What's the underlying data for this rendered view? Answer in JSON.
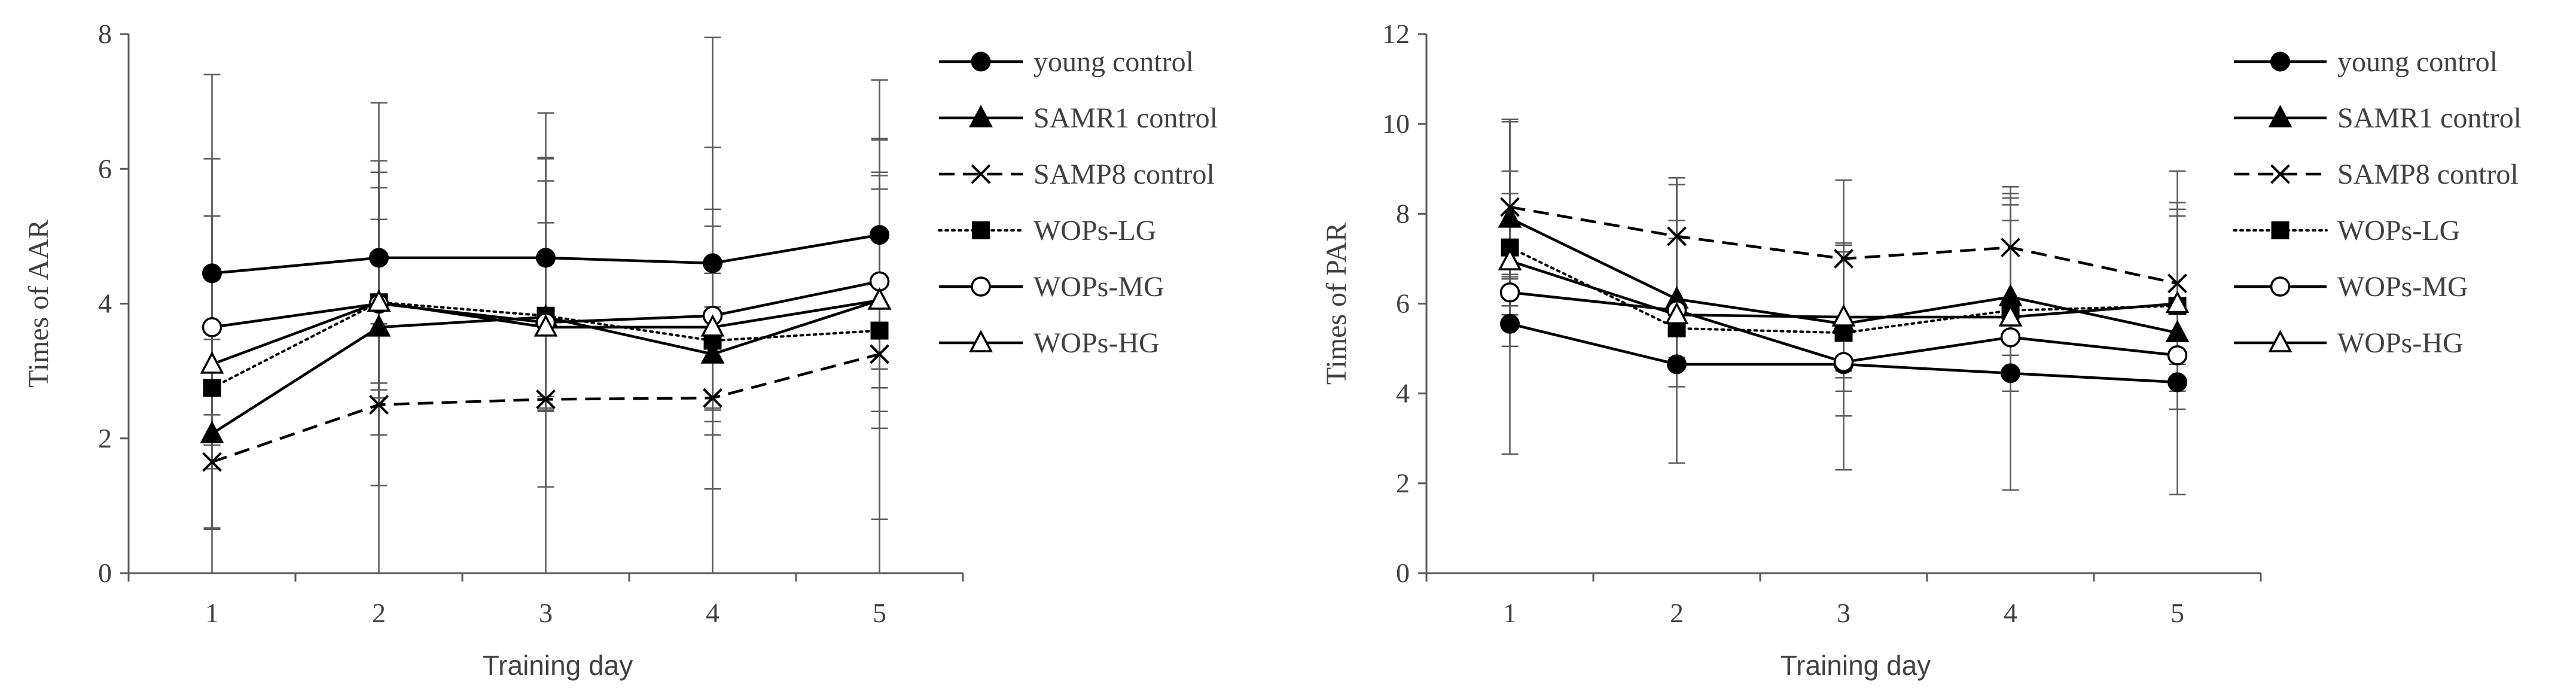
{
  "chart_data": [
    {
      "type": "line",
      "title": "",
      "xlabel": "Training day",
      "ylabel": "Times of  AAR",
      "categories": [
        "1",
        "2",
        "3",
        "4",
        "5"
      ],
      "ylim": [
        0,
        8
      ],
      "yticks": [
        "0",
        "2",
        "4",
        "6",
        "8"
      ],
      "legend_position": "right",
      "series": [
        {
          "name": "young control",
          "marker": "circle-filled",
          "line": "solid",
          "values": [
            4.45,
            4.68,
            4.68,
            4.6,
            5.02
          ],
          "err_low": [
            4.45,
            4.68,
            4.68,
            4.6,
            5.02
          ],
          "err_high": [
            2.95,
            2.3,
            2.15,
            3.35,
            2.3
          ]
        },
        {
          "name": "SAMR1 control",
          "marker": "triangle-filled",
          "line": "solid",
          "values": [
            2.07,
            3.65,
            3.8,
            3.25,
            4.05
          ],
          "err_low": [
            1.4,
            1.6,
            1.4,
            1.2,
            1.9
          ],
          "err_high": [
            1.4,
            1.6,
            1.4,
            1.2,
            1.9
          ]
        },
        {
          "name": "SAMP8 control",
          "marker": "x",
          "line": "dashed",
          "values": [
            1.65,
            2.5,
            2.58,
            2.6,
            3.25
          ],
          "err_low": [
            1.0,
            1.2,
            1.3,
            1.35,
            2.45
          ],
          "err_high": [
            1.0,
            1.2,
            1.3,
            1.35,
            2.45
          ]
        },
        {
          "name": "WOPs-LG",
          "marker": "square-filled",
          "line": "dotted",
          "values": [
            2.75,
            4.02,
            3.82,
            3.45,
            3.6
          ],
          "err_low": [
            1.2,
            1.2,
            1.2,
            1.2,
            1.2
          ],
          "err_high": [
            2.55,
            2.1,
            2.0,
            1.95,
            2.3
          ]
        },
        {
          "name": "WOPs-MG",
          "marker": "circle-open",
          "line": "solid",
          "values": [
            3.65,
            4.0,
            3.72,
            3.82,
            4.33
          ],
          "err_low": [
            1.3,
            1.4,
            1.3,
            1.4,
            1.3
          ],
          "err_high": [
            2.5,
            1.95,
            2.45,
            2.5,
            2.1
          ]
        },
        {
          "name": "WOPs-HG",
          "marker": "triangle-open",
          "line": "solid",
          "values": [
            3.1,
            4.02,
            3.65,
            3.65,
            4.05
          ],
          "err_low": [
            1.2,
            1.3,
            1.2,
            1.2,
            1.3
          ],
          "err_high": [
            2.2,
            1.7,
            2.5,
            1.5,
            2.4
          ]
        }
      ]
    },
    {
      "type": "line",
      "title": "",
      "xlabel": "Training day",
      "ylabel": "Times of PAR",
      "categories": [
        "1",
        "2",
        "3",
        "4",
        "5"
      ],
      "ylim": [
        0,
        12
      ],
      "yticks": [
        "0",
        "2",
        "4",
        "6",
        "8",
        "10",
        "12"
      ],
      "legend_position": "right",
      "series": [
        {
          "name": "young control",
          "marker": "circle-filled",
          "line": "solid",
          "values": [
            5.55,
            4.65,
            4.65,
            4.45,
            4.25
          ],
          "err_low": [
            2.9,
            2.2,
            2.35,
            2.6,
            2.5
          ],
          "err_high": [
            1.0,
            0.8,
            0.9,
            0.9,
            1.0
          ]
        },
        {
          "name": "SAMR1 control",
          "marker": "triangle-filled",
          "line": "solid",
          "values": [
            7.9,
            6.1,
            5.55,
            6.15,
            5.35
          ],
          "err_low": [
            1.3,
            1.3,
            1.2,
            1.3,
            1.3
          ],
          "err_high": [
            2.2,
            2.7,
            1.6,
            2.3,
            2.9
          ]
        },
        {
          "name": "SAMP8 control",
          "marker": "x",
          "line": "dashed",
          "values": [
            8.15,
            7.5,
            7.0,
            7.25,
            6.45
          ],
          "err_low": [
            1.5,
            1.5,
            1.5,
            1.5,
            1.5
          ],
          "err_high": [
            1.95,
            1.3,
            1.75,
            1.35,
            2.5
          ]
        },
        {
          "name": "WOPs-LG",
          "marker": "square-filled",
          "line": "dotted",
          "values": [
            7.25,
            5.45,
            5.35,
            5.85,
            5.95
          ],
          "err_low": [
            1.3,
            1.3,
            1.3,
            1.3,
            1.3
          ],
          "err_high": [
            2.8,
            2.0,
            2.0,
            2.0,
            2.0
          ]
        },
        {
          "name": "WOPs-MG",
          "marker": "circle-open",
          "line": "solid",
          "values": [
            6.25,
            5.85,
            4.7,
            5.25,
            4.85
          ],
          "err_low": [
            1.2,
            1.2,
            1.2,
            1.2,
            1.2
          ],
          "err_high": [
            2.2,
            2.8,
            2.6,
            3.1,
            3.4
          ]
        },
        {
          "name": "WOPs-HG",
          "marker": "triangle-open",
          "line": "solid",
          "values": [
            6.95,
            5.75,
            5.7,
            5.7,
            6.0
          ],
          "err_low": [
            1.2,
            1.2,
            1.2,
            1.2,
            1.2
          ],
          "err_high": [
            2.0,
            2.1,
            1.6,
            2.5,
            2.1
          ]
        }
      ]
    }
  ]
}
